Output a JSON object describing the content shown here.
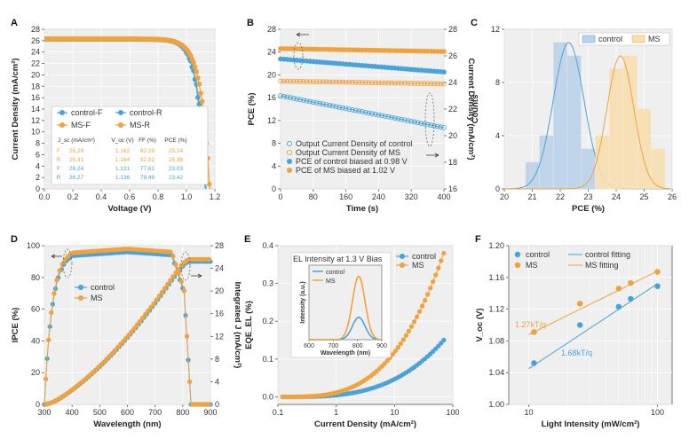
{
  "colors": {
    "blue": "#4aa3d8",
    "orange": "#f0a23c",
    "blue_fill": "#bcd3ea",
    "orange_fill": "#f8dfb0"
  },
  "chart_data": [
    {
      "id": "A",
      "type": "line",
      "panel": "A",
      "xlabel": "Voltage (V)",
      "ylabel": "Current Density (mA/cm²)",
      "xlim": [
        0.0,
        1.2
      ],
      "ylim": [
        0,
        28
      ],
      "xticks": [
        "0.0",
        "0.2",
        "0.4",
        "0.6",
        "0.8",
        "1.0",
        "1.2"
      ],
      "yticks": [
        "0",
        "2",
        "4",
        "6",
        "8",
        "10",
        "12",
        "14",
        "16",
        "18",
        "20",
        "22",
        "24",
        "26",
        "28"
      ],
      "series": [
        {
          "name": "control-F",
          "color": "blue",
          "marker": "filled",
          "jsc": 26.24,
          "voc": 1.131,
          "ff": 77.61
        },
        {
          "name": "control-R",
          "color": "blue",
          "marker": "filled",
          "jsc": 26.27,
          "voc": 1.136,
          "ff": 78.49
        },
        {
          "name": "MS-F",
          "color": "orange",
          "marker": "filled",
          "jsc": 26.29,
          "voc": 1.162,
          "ff": 82.29
        },
        {
          "name": "MS-R",
          "color": "orange",
          "marker": "filled",
          "jsc": 26.31,
          "voc": 1.164,
          "ff": 82.82
        }
      ],
      "table": {
        "headers": [
          "J_sc (mA/cm²)",
          "V_oc (V)",
          "FF (%)",
          "PCE (%)"
        ],
        "rows": [
          {
            "label": "F",
            "color": "orange",
            "cells": [
              "26.29",
              "1.162",
              "82.29",
              "25.14"
            ]
          },
          {
            "label": "R",
            "color": "orange",
            "cells": [
              "26.31",
              "1.164",
              "82.82",
              "25.38"
            ]
          },
          {
            "label": "F",
            "color": "blue",
            "cells": [
              "26.24",
              "1.131",
              "77.61",
              "23.03"
            ]
          },
          {
            "label": "R",
            "color": "blue",
            "cells": [
              "26.27",
              "1.136",
              "78.49",
              "23.42"
            ]
          }
        ]
      }
    },
    {
      "id": "B",
      "type": "line",
      "panel": "B",
      "xlabel": "Time (s)",
      "ylabel": "PCE (%)",
      "y2label": "Current Density (mA/cm²)",
      "xlim": [
        0,
        400
      ],
      "ylim": [
        0,
        28
      ],
      "y2lim": [
        16,
        28
      ],
      "xticks": [
        "0",
        "80",
        "160",
        "240",
        "320",
        "400"
      ],
      "yticks": [
        "0",
        "4",
        "8",
        "12",
        "16",
        "20",
        "24",
        "28"
      ],
      "y2ticks": [
        "16",
        "18",
        "20",
        "22",
        "24",
        "26",
        "28"
      ],
      "series": [
        {
          "name": "Output Current Density of control",
          "color": "blue",
          "marker": "open",
          "axis": "right",
          "x": [
            0,
            400
          ],
          "y": [
            23.0,
            20.6
          ]
        },
        {
          "name": "Output Current Density of MS",
          "color": "orange",
          "marker": "open",
          "axis": "right",
          "x": [
            0,
            400
          ],
          "y": [
            24.1,
            23.9
          ]
        },
        {
          "name": "PCE of control biased at 0.98 V",
          "color": "blue",
          "marker": "filled",
          "axis": "left",
          "x": [
            0,
            400
          ],
          "y": [
            22.8,
            20.5
          ]
        },
        {
          "name": "PCE of MS biased at 1.02 V",
          "color": "orange",
          "marker": "filled",
          "axis": "left",
          "x": [
            0,
            400
          ],
          "y": [
            24.6,
            24.1
          ]
        }
      ]
    },
    {
      "id": "C",
      "type": "bar",
      "panel": "C",
      "xlabel": "PCE (%)",
      "ylabel": "Counts",
      "xlim": [
        20,
        26
      ],
      "ylim": [
        0,
        12
      ],
      "xticks": [
        "20",
        "21",
        "22",
        "23",
        "24",
        "25",
        "26"
      ],
      "yticks": [
        "0",
        "4",
        "8",
        "12"
      ],
      "series": [
        {
          "name": "control",
          "color": "blue",
          "bin_start": 20.75,
          "bin_width": 0.5,
          "values": [
            2,
            4,
            11,
            10,
            3
          ],
          "fit_mean": 22.3,
          "fit_sd": 0.55,
          "fit_peak": 11
        },
        {
          "name": "MS",
          "color": "orange",
          "bin_start": 23.25,
          "bin_width": 0.5,
          "values": [
            4,
            9,
            10,
            6,
            3
          ],
          "fit_mean": 24.15,
          "fit_sd": 0.48,
          "fit_peak": 10
        }
      ]
    },
    {
      "id": "D",
      "type": "line",
      "panel": "D",
      "xlabel": "Wavelength (nm)",
      "ylabel": "IPCE (%)",
      "y2label": "Integrated J (mA/cm²)",
      "xlim": [
        300,
        900
      ],
      "ylim": [
        0,
        100
      ],
      "y2lim": [
        0,
        28
      ],
      "xticks": [
        "300",
        "400",
        "500",
        "600",
        "700",
        "800",
        "900"
      ],
      "yticks": [
        "0",
        "20",
        "40",
        "60",
        "80",
        "100"
      ],
      "y2ticks": [
        "0",
        "4",
        "8",
        "12",
        "16",
        "20",
        "24",
        "28"
      ],
      "series": [
        {
          "name": "control",
          "color": "blue",
          "marker": "filled",
          "ipce_peak": 96,
          "integrated_j": 25.2
        },
        {
          "name": "MS",
          "color": "orange",
          "marker": "filled",
          "ipce_peak": 98,
          "integrated_j": 25.6
        }
      ]
    },
    {
      "id": "E",
      "type": "line",
      "panel": "E",
      "xlabel": "Current Density (mA/cm²)",
      "ylabel": "EQE_EL (%)",
      "xscale": "log",
      "xlim": [
        0.1,
        100
      ],
      "ylim": [
        -0.02,
        0.4
      ],
      "xticks": [
        "0.1",
        "1",
        "10",
        "100"
      ],
      "yticks": [
        "0.0",
        "0.1",
        "0.2",
        "0.3",
        "0.4"
      ],
      "series": [
        {
          "name": "control",
          "color": "blue",
          "marker": "filled",
          "x_end": 70,
          "y_end": 0.15
        },
        {
          "name": "MS",
          "color": "orange",
          "marker": "filled",
          "x_end": 70,
          "y_end": 0.38
        }
      ],
      "inset": {
        "title": "EL Intensity at 1.3 V Bias",
        "xlabel": "Wavelength (nm)",
        "ylabel": "Intensity (a.u.)",
        "xlim": [
          600,
          900
        ],
        "xticks": [
          "600",
          "700",
          "800",
          "900"
        ],
        "series": [
          {
            "name": "control",
            "color": "blue",
            "peak_nm": 805,
            "peak": 0.3
          },
          {
            "name": "MS",
            "color": "orange",
            "peak_nm": 805,
            "peak": 0.85
          }
        ]
      }
    },
    {
      "id": "F",
      "type": "scatter",
      "panel": "F",
      "xlabel": "Light Intensity (mW/cm²)",
      "ylabel": "V_oc (V)",
      "xscale": "log",
      "xlim": [
        7,
        130
      ],
      "ylim": [
        1.0,
        1.2
      ],
      "xticks": [
        "10",
        "100"
      ],
      "yticks": [
        "1.00",
        "1.04",
        "1.08",
        "1.12",
        "1.16",
        "1.20"
      ],
      "series": [
        {
          "name": "control",
          "color": "blue",
          "x": [
            11,
            25,
            50,
            62,
            100
          ],
          "y": [
            1.052,
            1.1,
            1.123,
            1.133,
            1.149
          ]
        },
        {
          "name": "MS",
          "color": "orange",
          "x": [
            11,
            25,
            50,
            62,
            100
          ],
          "y": [
            1.091,
            1.127,
            1.146,
            1.153,
            1.167
          ]
        }
      ],
      "fits": [
        {
          "name": "control fitting",
          "color": "blue",
          "label": "1.68kT/q",
          "y_at_10": 1.045,
          "y_at_100": 1.152
        },
        {
          "name": "MS fitting",
          "color": "orange",
          "label": "1.27kT/q",
          "y_at_10": 1.088,
          "y_at_100": 1.168
        }
      ]
    }
  ]
}
